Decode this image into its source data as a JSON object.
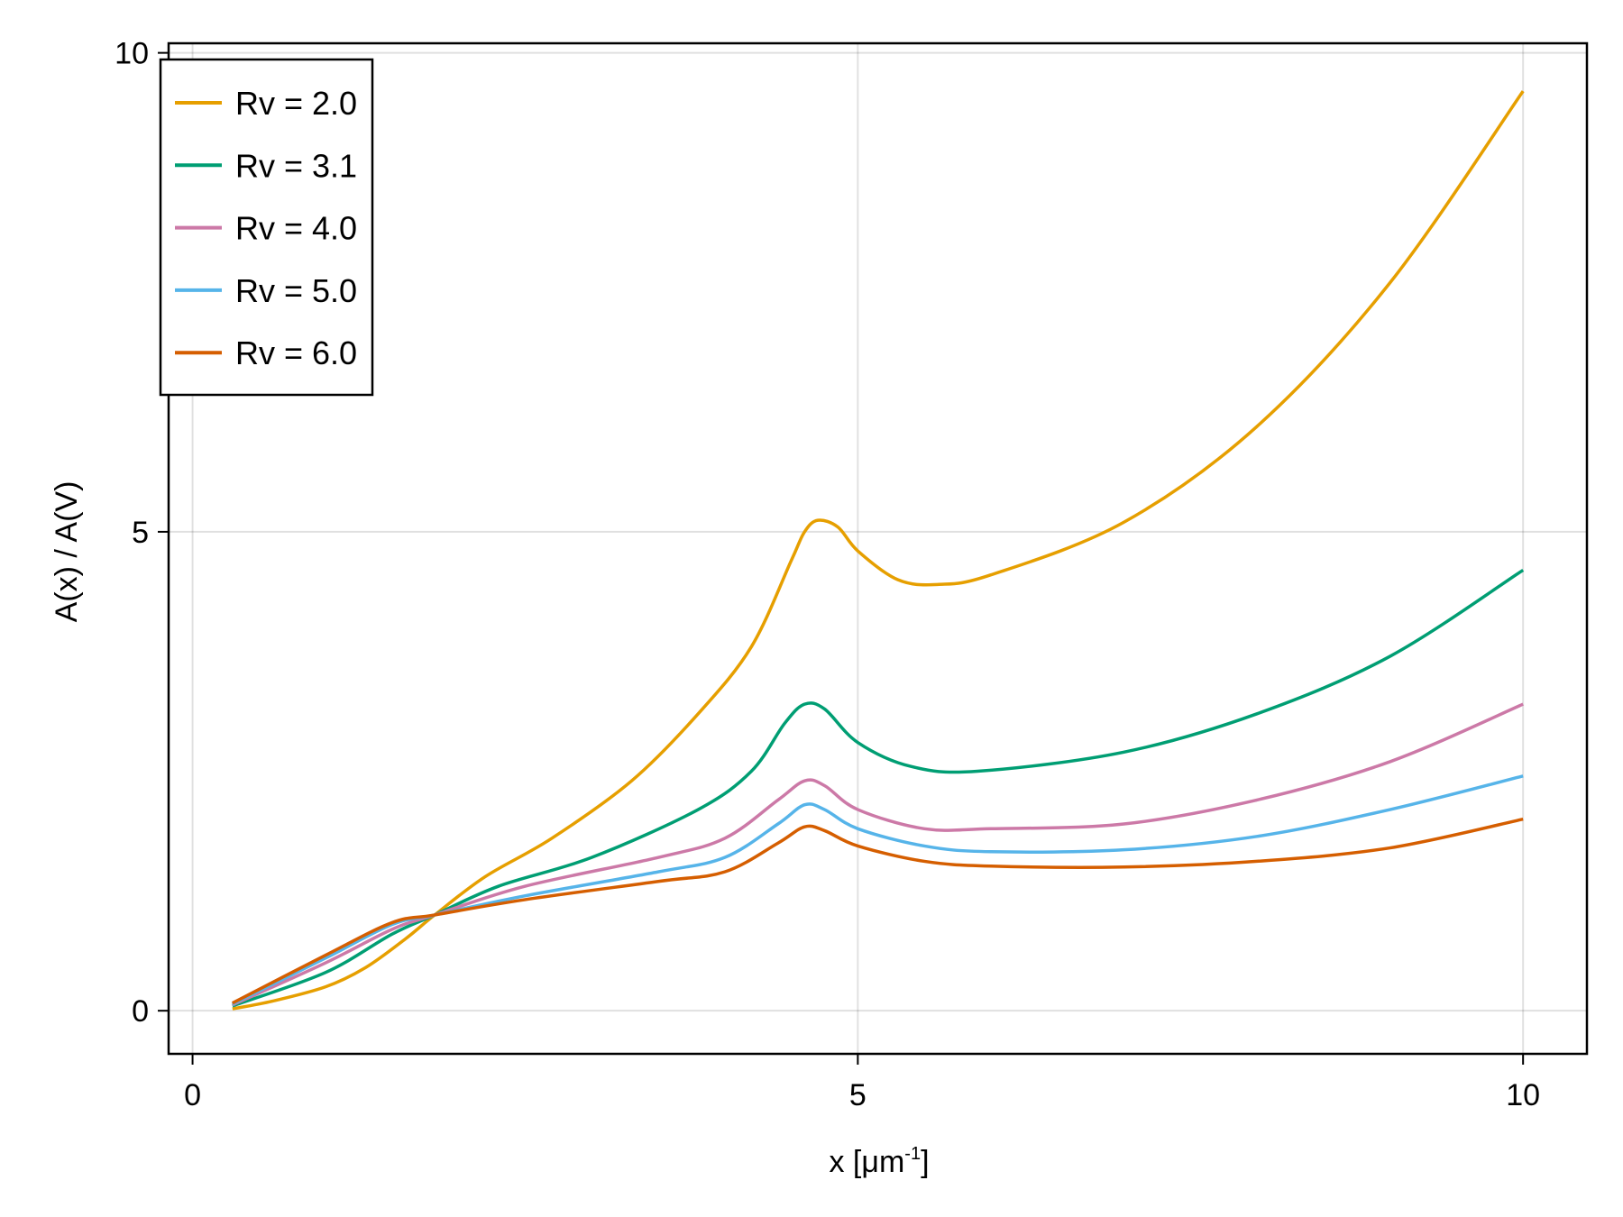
{
  "chart_data": {
    "type": "line",
    "title": "",
    "xlabel": "x [μm⁻¹]",
    "xlabel_main": "x [μm",
    "xlabel_sup": "-1",
    "xlabel_end": "]",
    "ylabel": "A(x) / A(V)",
    "xlim": [
      -0.18,
      10.48
    ],
    "ylim": [
      -0.45,
      10.1
    ],
    "xticks": [
      0,
      5,
      10
    ],
    "xtick_labels": [
      "0",
      "5",
      "10"
    ],
    "yticks": [
      0,
      5,
      10
    ],
    "ytick_labels": [
      "0",
      "5",
      "10"
    ],
    "grid": true,
    "legend_position": "top-left",
    "series": [
      {
        "name": "Rv = 2.0",
        "color": "#E69F00",
        "x": [
          0.3,
          0.6,
          1.0,
          1.3,
          1.6,
          1.82,
          2.2,
          2.7,
          3.3,
          3.8,
          4.2,
          4.5,
          4.6,
          4.7,
          4.85,
          5.0,
          5.3,
          5.6,
          6.0,
          7.0,
          8.0,
          9.0,
          10.0
        ],
        "y": [
          0.02,
          0.1,
          0.25,
          0.45,
          0.75,
          1.0,
          1.4,
          1.8,
          2.4,
          3.1,
          3.8,
          4.7,
          5.0,
          5.12,
          5.05,
          4.8,
          4.5,
          4.45,
          4.55,
          5.1,
          6.1,
          7.6,
          9.6
        ]
      },
      {
        "name": "Rv = 3.1",
        "color": "#009E73",
        "x": [
          0.3,
          1.0,
          1.5,
          1.82,
          2.3,
          3.0,
          3.8,
          4.2,
          4.45,
          4.6,
          4.75,
          5.0,
          5.4,
          5.9,
          7.0,
          8.0,
          9.0,
          10.0
        ],
        "y": [
          0.05,
          0.4,
          0.8,
          1.0,
          1.3,
          1.6,
          2.1,
          2.5,
          3.0,
          3.2,
          3.15,
          2.8,
          2.55,
          2.5,
          2.7,
          3.1,
          3.7,
          4.6
        ]
      },
      {
        "name": "Rv = 4.0",
        "color": "#CC79A7",
        "x": [
          0.3,
          1.0,
          1.5,
          1.82,
          2.5,
          3.5,
          4.0,
          4.4,
          4.6,
          4.75,
          5.0,
          5.5,
          6.0,
          7.0,
          8.0,
          9.0,
          10.0
        ],
        "y": [
          0.06,
          0.5,
          0.85,
          1.0,
          1.3,
          1.6,
          1.8,
          2.2,
          2.4,
          2.35,
          2.1,
          1.9,
          1.9,
          1.95,
          2.2,
          2.6,
          3.2
        ]
      },
      {
        "name": "Rv = 5.0",
        "color": "#56B4E9",
        "x": [
          0.3,
          1.0,
          1.5,
          1.82,
          2.5,
          3.5,
          4.0,
          4.4,
          4.6,
          4.75,
          5.0,
          5.5,
          6.0,
          7.0,
          8.0,
          9.0,
          10.0
        ],
        "y": [
          0.07,
          0.55,
          0.9,
          1.0,
          1.2,
          1.45,
          1.6,
          1.95,
          2.15,
          2.1,
          1.9,
          1.72,
          1.66,
          1.68,
          1.82,
          2.1,
          2.45
        ]
      },
      {
        "name": "Rv = 6.0",
        "color": "#D55E00",
        "x": [
          0.3,
          1.0,
          1.5,
          1.82,
          2.5,
          3.5,
          4.0,
          4.4,
          4.6,
          4.75,
          5.0,
          5.5,
          6.0,
          7.0,
          8.0,
          9.0,
          10.0
        ],
        "y": [
          0.08,
          0.58,
          0.92,
          1.0,
          1.16,
          1.35,
          1.45,
          1.75,
          1.92,
          1.88,
          1.72,
          1.56,
          1.51,
          1.5,
          1.56,
          1.7,
          2.0
        ]
      }
    ]
  }
}
